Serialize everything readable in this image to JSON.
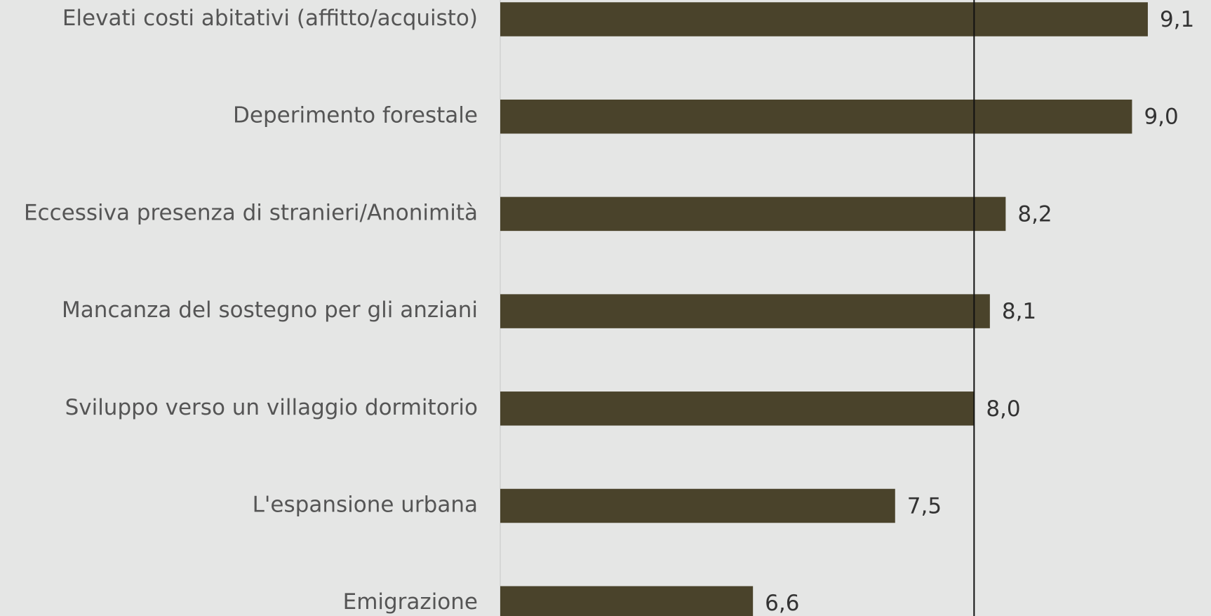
{
  "chart_data": {
    "type": "barh",
    "categories": [
      "Elevati costi abitativi (affitto/acquisto)",
      "Deperimento forestale",
      "Eccessiva presenza di stranieri/Anonimità",
      "Mancanza del sostegno per gli anziani",
      "Sviluppo verso un villaggio dormitorio",
      "L'espansione urbana",
      "Emigrazione"
    ],
    "values": [
      9.1,
      9.0,
      8.2,
      8.1,
      8.0,
      7.5,
      6.6
    ],
    "value_labels": [
      "9,1",
      "9,0",
      "8,2",
      "8,1",
      "8,0",
      "7,5",
      "6,6"
    ],
    "color": "#4a432b",
    "xlim": [
      5,
      9.5
    ],
    "reference_line": 8.0
  }
}
